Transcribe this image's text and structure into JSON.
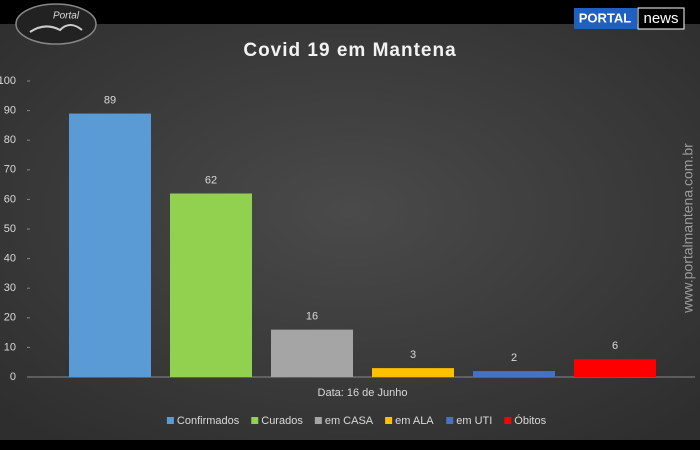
{
  "logo": {
    "text": "Portal"
  },
  "badge": {
    "left": "PORTAL",
    "right": "news"
  },
  "watermark": "www.portalmantena.com.br",
  "chart_data": {
    "type": "bar",
    "title": "Covid 19 em Mantena",
    "categories": [
      "Data: 16 de Junho"
    ],
    "series": [
      {
        "name": "Confirmados",
        "color": "#5b9bd5",
        "values": [
          89
        ]
      },
      {
        "name": "Curados",
        "color": "#92d050",
        "values": [
          62
        ]
      },
      {
        "name": "em CASA",
        "color": "#a5a5a5",
        "values": [
          16
        ]
      },
      {
        "name": "em ALA",
        "color": "#ffc000",
        "values": [
          3
        ]
      },
      {
        "name": "em UTI",
        "color": "#4472c4",
        "values": [
          2
        ]
      },
      {
        "name": "Óbitos",
        "color": "#ff0000",
        "values": [
          6
        ]
      }
    ],
    "ylim": [
      0,
      100
    ],
    "yticks": [
      0,
      10,
      20,
      30,
      40,
      50,
      60,
      70,
      80,
      90,
      100
    ],
    "grid": false,
    "legend": "bottom"
  }
}
